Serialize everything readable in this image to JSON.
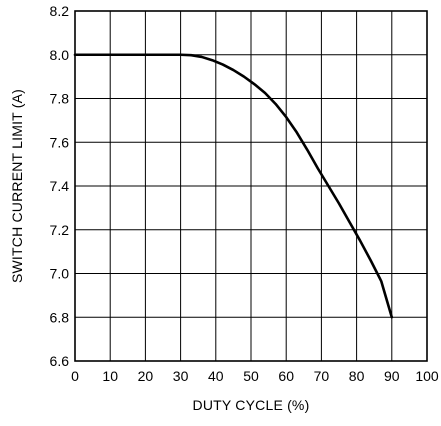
{
  "chart_data": {
    "type": "line",
    "title": "",
    "xlabel": "DUTY CYCLE (%)",
    "ylabel": "SWITCH CURRENT LIMIT (A)",
    "xlim": [
      0,
      100
    ],
    "ylim": [
      6.6,
      8.2
    ],
    "x_ticks": [
      "0",
      "10",
      "20",
      "30",
      "40",
      "50",
      "60",
      "70",
      "80",
      "90",
      "100"
    ],
    "y_ticks": [
      "6.6",
      "6.8",
      "7.0",
      "7.2",
      "7.4",
      "7.6",
      "7.8",
      "8.0",
      "8.2"
    ],
    "grid": true,
    "series": [
      {
        "x": [
          0,
          10,
          20,
          30,
          33,
          36,
          39,
          42,
          45,
          48,
          51,
          54,
          57,
          60,
          63,
          66,
          69,
          72,
          75,
          78,
          81,
          84,
          87,
          90
        ],
        "y": [
          8.0,
          8.0,
          8.0,
          8.0,
          7.998,
          7.99,
          7.975,
          7.955,
          7.93,
          7.9,
          7.865,
          7.825,
          7.775,
          7.715,
          7.645,
          7.565,
          7.48,
          7.4,
          7.32,
          7.235,
          7.15,
          7.06,
          6.965,
          6.8
        ]
      }
    ],
    "line_color": "#000000",
    "grid_color": "#000000"
  }
}
